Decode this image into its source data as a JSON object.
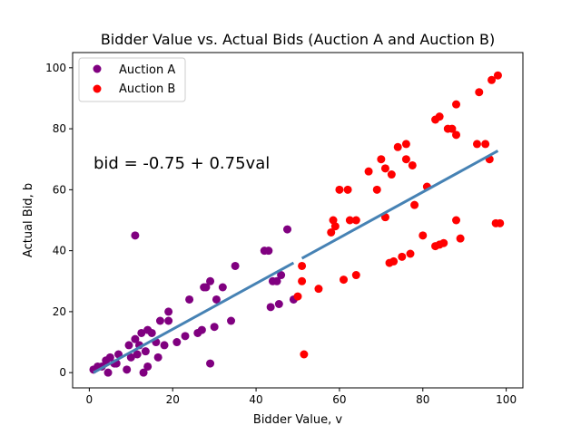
{
  "chart_data": {
    "type": "scatter",
    "title": "Bidder Value vs. Actual Bids (Auction A and Auction B)",
    "xlabel": "Bidder Value, v",
    "ylabel": "Actual Bid, b",
    "xlim": [
      -4,
      104
    ],
    "ylim": [
      -5,
      105
    ],
    "xticks": [
      0,
      20,
      40,
      60,
      80,
      100
    ],
    "yticks": [
      0,
      20,
      40,
      60,
      80,
      100
    ],
    "grid": false,
    "legend_position": "top-left",
    "annotation": "bid = -0.75 + 0.75val",
    "series": [
      {
        "name": "Auction A",
        "color": "#800080",
        "points": [
          [
            1,
            1
          ],
          [
            2,
            2
          ],
          [
            3,
            2
          ],
          [
            4,
            4
          ],
          [
            4.5,
            0
          ],
          [
            5,
            5
          ],
          [
            6,
            3
          ],
          [
            6.5,
            3
          ],
          [
            7,
            6
          ],
          [
            9,
            1
          ],
          [
            9.5,
            9
          ],
          [
            10,
            5
          ],
          [
            11,
            11
          ],
          [
            11,
            45
          ],
          [
            11.5,
            6
          ],
          [
            12,
            9
          ],
          [
            12.5,
            13
          ],
          [
            13,
            0
          ],
          [
            13.5,
            7
          ],
          [
            14,
            14
          ],
          [
            14,
            2
          ],
          [
            15,
            13
          ],
          [
            16,
            10
          ],
          [
            16.5,
            5
          ],
          [
            17,
            17
          ],
          [
            18,
            9
          ],
          [
            19,
            17
          ],
          [
            19,
            20
          ],
          [
            21,
            10
          ],
          [
            23,
            12
          ],
          [
            24,
            24
          ],
          [
            26,
            13
          ],
          [
            27,
            14
          ],
          [
            27.5,
            28
          ],
          [
            28,
            28
          ],
          [
            29,
            30
          ],
          [
            29,
            3
          ],
          [
            30,
            15
          ],
          [
            30.5,
            24
          ],
          [
            32,
            28
          ],
          [
            34,
            17
          ],
          [
            35,
            35
          ],
          [
            42,
            40
          ],
          [
            43,
            40
          ],
          [
            43.5,
            21.5
          ],
          [
            44,
            30
          ],
          [
            45,
            30
          ],
          [
            45.5,
            22.5
          ],
          [
            46,
            32
          ],
          [
            47.5,
            47
          ],
          [
            49,
            24
          ]
        ]
      },
      {
        "name": "Auction B",
        "color": "#ff0000",
        "points": [
          [
            50,
            25
          ],
          [
            51,
            30
          ],
          [
            51,
            35
          ],
          [
            51.5,
            6
          ],
          [
            55,
            27.5
          ],
          [
            58,
            46
          ],
          [
            58.5,
            50
          ],
          [
            59,
            48
          ],
          [
            60,
            60
          ],
          [
            61,
            30.5
          ],
          [
            62,
            60
          ],
          [
            62.5,
            50
          ],
          [
            64,
            32
          ],
          [
            64,
            50
          ],
          [
            67,
            66
          ],
          [
            69,
            60
          ],
          [
            70,
            70
          ],
          [
            71,
            51
          ],
          [
            71,
            67
          ],
          [
            72,
            36
          ],
          [
            72.5,
            65
          ],
          [
            73,
            36.5
          ],
          [
            74,
            74
          ],
          [
            75,
            38
          ],
          [
            76,
            75
          ],
          [
            76,
            70
          ],
          [
            77,
            39
          ],
          [
            77.5,
            68
          ],
          [
            78,
            55
          ],
          [
            80,
            45
          ],
          [
            81,
            61
          ],
          [
            83,
            83
          ],
          [
            83,
            41.5
          ],
          [
            84,
            42
          ],
          [
            84,
            84
          ],
          [
            85,
            42.5
          ],
          [
            86,
            80
          ],
          [
            87,
            80
          ],
          [
            88,
            88
          ],
          [
            88,
            50
          ],
          [
            88,
            78
          ],
          [
            89,
            44
          ],
          [
            93,
            75
          ],
          [
            93.5,
            92
          ],
          [
            95,
            75
          ],
          [
            96,
            70
          ],
          [
            96.5,
            96
          ],
          [
            97.5,
            49
          ],
          [
            98,
            97.5
          ],
          [
            98.5,
            49
          ]
        ]
      }
    ],
    "fit_line": {
      "color": "#4682b4",
      "intercept": -0.75,
      "slope": 0.75,
      "segments": [
        [
          1,
          49
        ],
        [
          51,
          98
        ]
      ]
    }
  }
}
